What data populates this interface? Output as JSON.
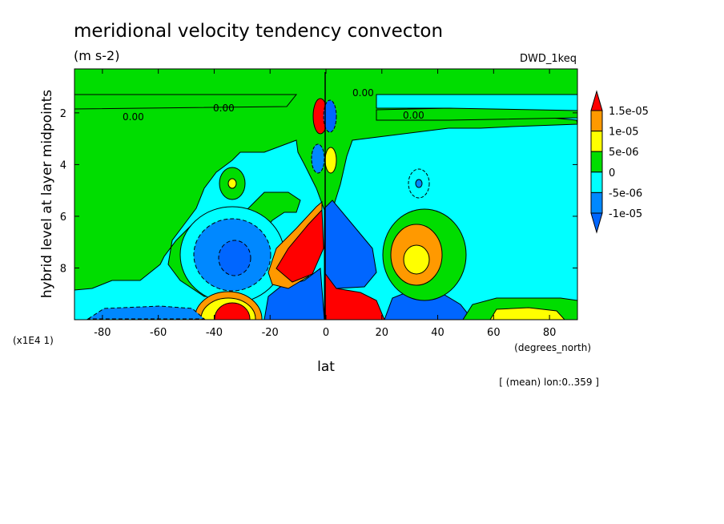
{
  "chart_data": {
    "type": "heatmap",
    "title": "meridional velocity tendency convecton",
    "units": "(m s-2)",
    "dataset": "DWD_1keq",
    "xlabel": "lat",
    "xunits": "(degrees_north)",
    "ylabel": "hybrid level at layer midpoints",
    "yscale_note": "(x1E4 1)",
    "footer": "[ (mean) lon:0..359 ]",
    "xlim": [
      -90,
      90
    ],
    "ylim": [
      0.3,
      10
    ],
    "y_inverted": true,
    "x_ticks": [
      -80,
      -60,
      -40,
      -20,
      0,
      20,
      40,
      60,
      80
    ],
    "y_ticks": [
      2,
      4,
      6,
      8
    ],
    "contour_label": "0.00",
    "legend": {
      "placement": "right",
      "labels": [
        "1.5e-05",
        "1e-05",
        "5e-06",
        "0",
        "-5e-06",
        "-1e-05"
      ],
      "colors": [
        "#ff0000",
        "#ff9900",
        "#ffff00",
        "#00dd00",
        "#00ffff",
        "#0088ff",
        "#0066ff"
      ]
    },
    "features": [
      {
        "lat": -34,
        "level": 9.4,
        "value": 1.6e-05
      },
      {
        "lat": -34,
        "level": 8.2,
        "value": -9e-06
      },
      {
        "lat": -10,
        "level": 7.8,
        "value": 1.6e-05
      },
      {
        "lat": -12,
        "level": 9.4,
        "value": -1.5e-05
      },
      {
        "lat": 10,
        "level": 9.2,
        "value": 1.7e-05
      },
      {
        "lat": 7,
        "level": 7.2,
        "value": -1.4e-05
      },
      {
        "lat": 32,
        "level": 7.5,
        "value": 1.2e-05
      },
      {
        "lat": 32,
        "level": 9.6,
        "value": -1.2e-05
      },
      {
        "lat": -2,
        "level": 2.0,
        "value": 1.5e-05
      },
      {
        "lat": 2,
        "level": 2.0,
        "value": -1.3e-05
      },
      {
        "lat": -33,
        "level": 4.4,
        "value": 6e-06
      },
      {
        "lat": 34,
        "level": 4.4,
        "value": -6e-06
      },
      {
        "lat": 68,
        "level": 9.7,
        "value": 7e-06
      }
    ]
  }
}
